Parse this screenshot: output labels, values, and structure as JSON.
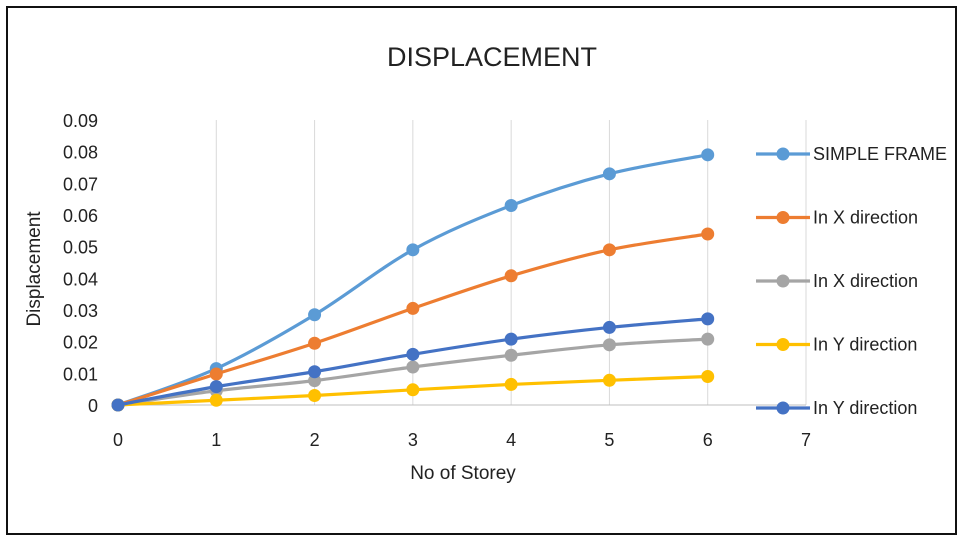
{
  "chart_data": {
    "type": "line",
    "title": "DISPLACEMENT",
    "xlabel": "No of Storey",
    "ylabel": "Displacement",
    "xlim": [
      0,
      7
    ],
    "ylim": [
      0,
      0.09
    ],
    "x_ticks": [
      "0",
      "1",
      "2",
      "3",
      "4",
      "5",
      "6",
      "7"
    ],
    "y_ticks": [
      "0",
      "0.01",
      "0.02",
      "0.03",
      "0.04",
      "0.05",
      "0.06",
      "0.07",
      "0.08",
      "0.09"
    ],
    "grid": "vertical",
    "legend_position": "right",
    "x": [
      0,
      1,
      2,
      3,
      4,
      5,
      6
    ],
    "series": [
      {
        "name": "SIMPLE FRAME",
        "color": "#5B9BD5",
        "values": [
          0,
          0.0115,
          0.0285,
          0.049,
          0.063,
          0.073,
          0.079
        ]
      },
      {
        "name": "In X direction",
        "color": "#ED7D31",
        "values": [
          0,
          0.0098,
          0.0195,
          0.0305,
          0.0408,
          0.049,
          0.054
        ]
      },
      {
        "name": "In X direction",
        "color": "#A5A5A5",
        "values": [
          0,
          0.0045,
          0.0077,
          0.012,
          0.0157,
          0.019,
          0.0208
        ]
      },
      {
        "name": " In Y direction",
        "color": "#FFC000",
        "values": [
          0,
          0.0015,
          0.003,
          0.0048,
          0.0065,
          0.0078,
          0.009
        ]
      },
      {
        "name": " In Y direction",
        "color": "#4472C4",
        "values": [
          0,
          0.0058,
          0.0105,
          0.016,
          0.0208,
          0.0245,
          0.0272
        ]
      }
    ]
  }
}
